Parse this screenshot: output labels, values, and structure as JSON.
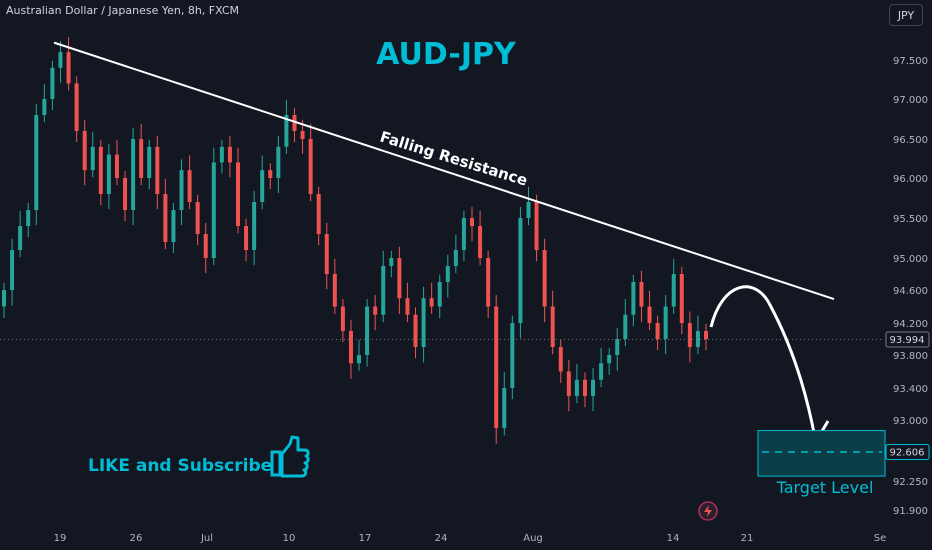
{
  "header": {
    "symbol_description": "Australian Dollar / Japanese Yen, 8h, FXCM",
    "currency_button": "JPY"
  },
  "colors": {
    "background": "#131722",
    "up": "#26a69a",
    "down": "#ef5350",
    "title": "#00bcd4",
    "text": "#d1d4dc",
    "target_box": "#0b3d47",
    "target_border": "#00bcd4"
  },
  "chart_data": {
    "type": "candlestick",
    "title": "AUD-JPY",
    "x_ticks": [
      "19",
      "26",
      "Jul",
      "10",
      "17",
      "24",
      "Aug",
      "14",
      "21",
      "Se"
    ],
    "y_ticks": [
      "97.500",
      "97.000",
      "96.500",
      "96.000",
      "95.500",
      "95.000",
      "94.600",
      "94.200",
      "93.800",
      "93.400",
      "93.000",
      "92.250",
      "91.900"
    ],
    "ylim": [
      91.85,
      98.15
    ],
    "last_price": "93.994",
    "target_price": "92.606",
    "annotations": {
      "resistance_label": "Falling Resistance",
      "target_label": "Target Level",
      "promo": "LIKE and Subscribe"
    },
    "resistance_line": {
      "start": {
        "date": "Jun 19",
        "price": 97.72
      },
      "end": {
        "date": "Aug 25",
        "price": 94.49
      }
    },
    "target_zone": {
      "high": 92.87,
      "low": 92.31,
      "level": 92.606
    },
    "closes": [
      94.6,
      95.1,
      95.4,
      95.6,
      96.8,
      97.0,
      97.4,
      97.6,
      97.2,
      96.6,
      96.1,
      96.4,
      95.8,
      96.3,
      96.0,
      95.6,
      96.5,
      96.0,
      96.4,
      95.8,
      95.2,
      95.6,
      96.1,
      95.7,
      95.3,
      95.0,
      96.2,
      96.4,
      96.2,
      95.4,
      95.1,
      95.7,
      96.1,
      96.0,
      96.4,
      96.8,
      96.6,
      96.5,
      95.8,
      95.3,
      94.8,
      94.4,
      94.1,
      93.7,
      93.8,
      94.4,
      94.3,
      94.9,
      95.0,
      94.5,
      94.3,
      93.9,
      94.5,
      94.4,
      94.7,
      94.9,
      95.1,
      95.5,
      95.4,
      95.0,
      94.4,
      92.9,
      93.4,
      94.2,
      95.5,
      95.7,
      95.1,
      94.4,
      93.9,
      93.6,
      93.3,
      93.5,
      93.3,
      93.5,
      93.7,
      93.8,
      94.0,
      94.3,
      94.7,
      94.4,
      94.2,
      94.0,
      94.4,
      94.8,
      94.2,
      93.9,
      94.1,
      94.0
    ]
  }
}
